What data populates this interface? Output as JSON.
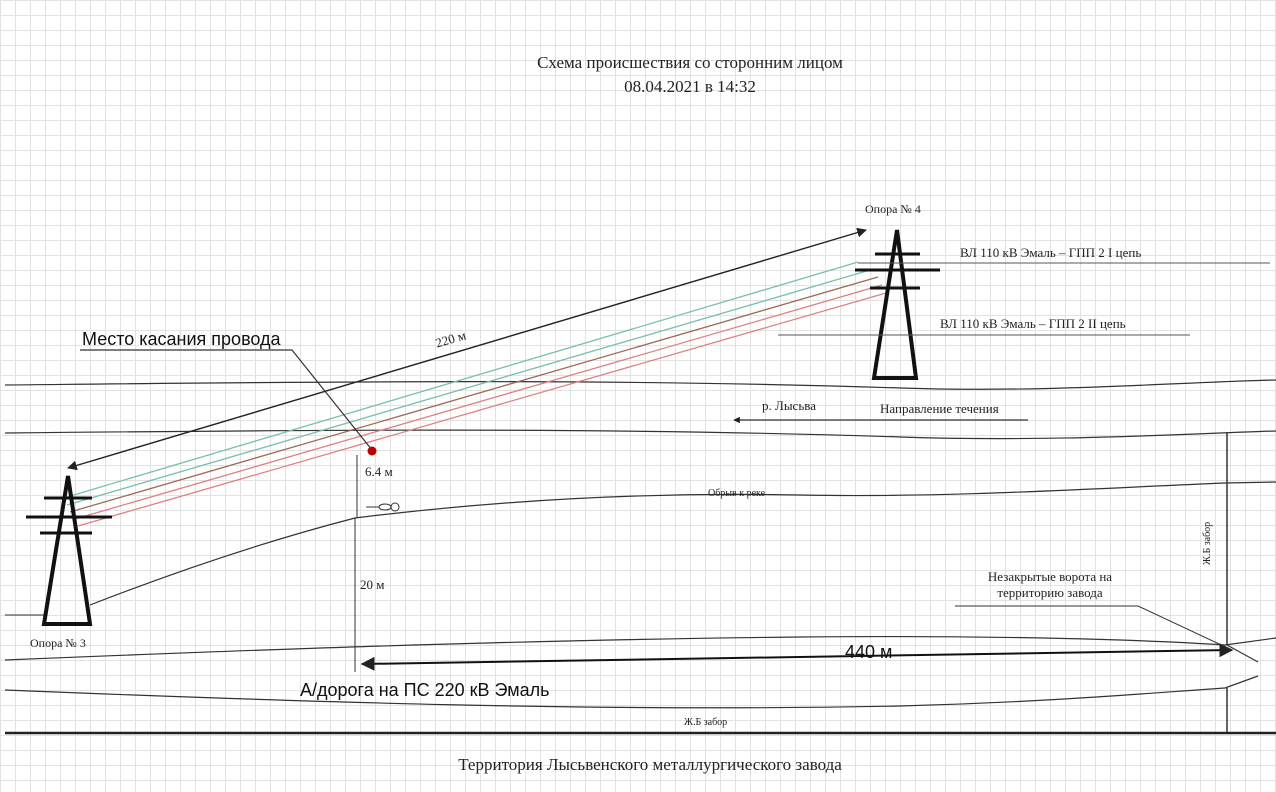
{
  "header": {
    "title_line1": "Схема происшествия со сторонним лицом",
    "title_line2": "08.04.2021 в 14:32"
  },
  "towers": {
    "tower3_label": "Опора № 3",
    "tower4_label": "Опора № 4"
  },
  "lines": {
    "line1_label": "ВЛ 110 кВ Эмаль – ГПП 2 I цепь",
    "line2_label": "ВЛ 110 кВ Эмаль – ГПП 2 II цепь",
    "line1_color": "#78c0a8",
    "line2_color": "#e08080"
  },
  "annotations": {
    "contact_point": "Место касания провода",
    "contact_point_color": "#c00000",
    "span_length": "220 м",
    "wire_height": "6.4 м",
    "cliff_height": "20 м",
    "road_length": "440 м",
    "river_name": "р. Лысьва",
    "flow_direction": "Направление течения",
    "cliff_label": "Обрыв к реке",
    "fence_vertical": "Ж.Б забор",
    "fence_bottom": "Ж.Б забор",
    "gates": "Незакрытые ворота на территорию завода",
    "road": "А/дорога на ПС 220 кВ Эмаль"
  },
  "footer": {
    "territory": "Территория Лысьвенского металлургического завода"
  }
}
